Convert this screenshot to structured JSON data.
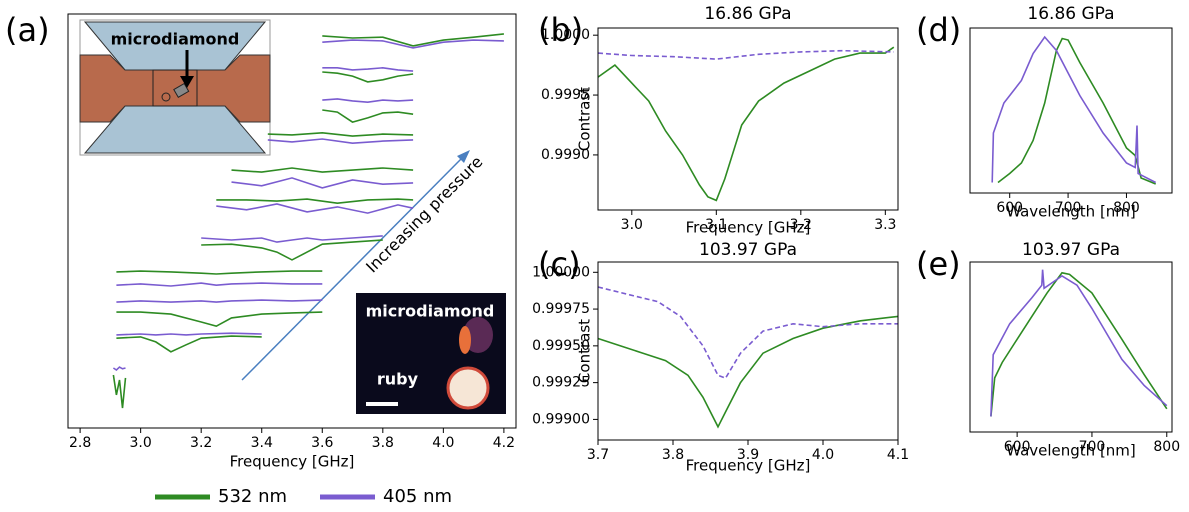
{
  "chart_data": [
    {
      "type": "line",
      "label": "(a)",
      "xlabel": "Frequency [GHz]",
      "xlim": [
        2.76,
        4.24
      ],
      "xticks": [
        2.8,
        {
          "value": 3,
          "label": "3.0"
        },
        3.2,
        3.4,
        3.6,
        3.8,
        {
          "value": 4,
          "label": "4.0"
        },
        4.2
      ],
      "ylim": [
        0,
        100
      ],
      "annotation": "Increasing pressure",
      "inset_labels": [
        "microdiamond",
        "microdiamond",
        "ruby"
      ],
      "series": [
        {
          "name": "532 nm",
          "color": "#2e8b23",
          "traces": [
            {
              "x": [
                2.91,
                2.92,
                2.93,
                2.94,
                2.95
              ],
              "values": [
                12.8,
                8.0,
                11.6,
                4.8,
                12.1
              ]
            },
            {
              "x": [
                2.92,
                3.0,
                3.05,
                3.1,
                3.15,
                3.2,
                3.3,
                3.4
              ],
              "values": [
                21.7,
                22.0,
                20.8,
                18.4,
                20.1,
                21.7,
                22.2,
                22.0
              ]
            },
            {
              "x": [
                2.92,
                3.0,
                3.1,
                3.2,
                3.25,
                3.3,
                3.4,
                3.5,
                3.6
              ],
              "values": [
                28.0,
                28.0,
                27.5,
                25.6,
                24.6,
                26.6,
                27.5,
                27.8,
                28.0
              ]
            },
            {
              "x": [
                2.92,
                3.0,
                3.1,
                3.2,
                3.25,
                3.3,
                3.4,
                3.5,
                3.6
              ],
              "values": [
                37.7,
                37.9,
                37.7,
                37.4,
                37.2,
                37.4,
                37.7,
                37.9,
                37.9
              ]
            },
            {
              "x": [
                3.2,
                3.3,
                3.4,
                3.45,
                3.5,
                3.55,
                3.6,
                3.7,
                3.8
              ],
              "values": [
                44.2,
                44.4,
                43.5,
                42.5,
                40.6,
                42.5,
                44.4,
                44.9,
                45.4
              ]
            },
            {
              "x": [
                3.25,
                3.35,
                3.45,
                3.55,
                3.65,
                3.75,
                3.85,
                3.9
              ],
              "values": [
                55.1,
                55.1,
                54.8,
                55.3,
                54.3,
                55.1,
                55.3,
                55.1
              ]
            },
            {
              "x": [
                3.3,
                3.4,
                3.5,
                3.6,
                3.7,
                3.8,
                3.9
              ],
              "values": [
                62.3,
                61.8,
                62.8,
                61.8,
                62.3,
                62.8,
                62.3
              ]
            },
            {
              "x": [
                3.42,
                3.5,
                3.6,
                3.7,
                3.8,
                3.9
              ],
              "values": [
                71.0,
                70.8,
                71.3,
                70.5,
                71.0,
                70.8
              ]
            },
            {
              "x": [
                3.6,
                3.65,
                3.7,
                3.75,
                3.8,
                3.85,
                3.9
              ],
              "values": [
                76.8,
                76.3,
                73.9,
                74.9,
                76.1,
                76.3,
                75.8
              ]
            },
            {
              "x": [
                3.6,
                3.65,
                3.7,
                3.75,
                3.8,
                3.85,
                3.9
              ],
              "values": [
                86.0,
                85.7,
                85.0,
                83.6,
                84.1,
                85.0,
                85.5
              ]
            },
            {
              "x": [
                3.6,
                3.7,
                3.8,
                3.9,
                4.0,
                4.1,
                4.2
              ],
              "values": [
                94.7,
                94.2,
                94.4,
                92.3,
                93.7,
                94.4,
                95.2
              ]
            }
          ]
        },
        {
          "name": "405 nm",
          "color": "#7a5cd0",
          "traces": [
            {
              "x": [
                2.91,
                2.92,
                2.93,
                2.94,
                2.95
              ],
              "values": [
                14.5,
                14.0,
                14.7,
                14.3,
                14.5
              ]
            },
            {
              "x": [
                2.92,
                3.0,
                3.05,
                3.1,
                3.15,
                3.2,
                3.3,
                3.4
              ],
              "values": [
                22.5,
                22.7,
                22.5,
                22.7,
                22.5,
                22.7,
                22.9,
                22.7
              ]
            },
            {
              "x": [
                2.92,
                3.0,
                3.1,
                3.2,
                3.25,
                3.3,
                3.4,
                3.5,
                3.6
              ],
              "values": [
                30.4,
                30.7,
                30.4,
                30.7,
                30.4,
                30.7,
                30.9,
                30.7,
                30.9
              ]
            },
            {
              "x": [
                2.92,
                3.0,
                3.1,
                3.2,
                3.25,
                3.3,
                3.4,
                3.5,
                3.6
              ],
              "values": [
                34.5,
                34.8,
                34.3,
                35.0,
                34.5,
                34.8,
                35.0,
                34.8,
                34.8
              ]
            },
            {
              "x": [
                3.2,
                3.3,
                3.4,
                3.45,
                3.5,
                3.55,
                3.6,
                3.7,
                3.8
              ],
              "values": [
                45.9,
                45.4,
                45.9,
                44.9,
                45.4,
                45.9,
                45.4,
                45.9,
                46.4
              ]
            },
            {
              "x": [
                3.25,
                3.35,
                3.45,
                3.55,
                3.65,
                3.75,
                3.85,
                3.9
              ],
              "values": [
                53.6,
                52.7,
                54.1,
                52.2,
                53.4,
                51.9,
                53.9,
                53.1
              ]
            },
            {
              "x": [
                3.3,
                3.4,
                3.5,
                3.6,
                3.7,
                3.8,
                3.9
              ],
              "values": [
                59.4,
                58.5,
                60.4,
                58.0,
                59.9,
                58.9,
                59.2
              ]
            },
            {
              "x": [
                3.42,
                3.5,
                3.6,
                3.7,
                3.8,
                3.9
              ],
              "values": [
                69.6,
                69.1,
                69.8,
                68.8,
                69.3,
                69.6
              ]
            },
            {
              "x": [
                3.6,
                3.65,
                3.7,
                3.75,
                3.8,
                3.85,
                3.9
              ],
              "values": [
                79.2,
                79.5,
                79.0,
                78.7,
                79.2,
                79.0,
                79.2
              ]
            },
            {
              "x": [
                3.6,
                3.65,
                3.7,
                3.75,
                3.8,
                3.85,
                3.9
              ],
              "values": [
                87.0,
                87.0,
                86.5,
                86.7,
                87.0,
                86.5,
                86.2
              ]
            },
            {
              "x": [
                3.6,
                3.7,
                3.8,
                3.9,
                4.0,
                4.1,
                4.2
              ],
              "values": [
                93.2,
                93.7,
                93.5,
                91.8,
                93.2,
                93.7,
                93.5
              ]
            }
          ]
        }
      ]
    },
    {
      "type": "line",
      "label": "(b)",
      "title": "16.86 GPa",
      "xlabel": "Frequency [GHz]",
      "ylabel": "Contrast",
      "xlim": [
        2.96,
        3.315
      ],
      "xticks": [
        {
          "value": 3,
          "label": "3.0"
        },
        3.1,
        3.2,
        3.3
      ],
      "ylim": [
        0.99854,
        1.00006
      ],
      "yticks": [
        {
          "value": 1,
          "label": "1.0000"
        },
        {
          "value": 0.9995,
          "label": "0.9995"
        },
        {
          "value": 0.999,
          "label": "0.9990"
        }
      ],
      "series": [
        {
          "color": "#2e8b23",
          "x": [
            2.96,
            2.98,
            3.0,
            3.02,
            3.04,
            3.06,
            3.08,
            3.09,
            3.1,
            3.11,
            3.13,
            3.15,
            3.18,
            3.21,
            3.24,
            3.27,
            3.3,
            3.31
          ],
          "values": [
            0.99965,
            0.99975,
            0.9996,
            0.99945,
            0.9992,
            0.999,
            0.99875,
            0.99865,
            0.99862,
            0.9988,
            0.99925,
            0.99945,
            0.9996,
            0.9997,
            0.9998,
            0.99985,
            0.99985,
            0.9999
          ]
        },
        {
          "color": "#7a5cd0",
          "dashed": true,
          "x": [
            2.96,
            3.0,
            3.05,
            3.1,
            3.15,
            3.2,
            3.25,
            3.31
          ],
          "values": [
            0.99985,
            0.99983,
            0.99982,
            0.9998,
            0.99984,
            0.99986,
            0.99987,
            0.99986
          ]
        }
      ]
    },
    {
      "type": "line",
      "label": "(c)",
      "title": "103.97 GPa",
      "xlabel": "Frequency [GHz]",
      "ylabel": "Contrast",
      "xlim": [
        3.7,
        4.1
      ],
      "xticks": [
        3.7,
        3.8,
        3.9,
        {
          "value": 4,
          "label": "4.0"
        },
        4.1
      ],
      "ylim": [
        0.99886,
        1.00007
      ],
      "yticks": [
        {
          "value": 1,
          "label": "1.00000"
        },
        {
          "value": 0.99975,
          "label": "0.99975"
        },
        {
          "value": 0.9995,
          "label": "0.99950"
        },
        {
          "value": 0.99925,
          "label": "0.99925"
        },
        {
          "value": 0.999,
          "label": "0.99900"
        }
      ],
      "series": [
        {
          "color": "#2e8b23",
          "x": [
            3.7,
            3.73,
            3.76,
            3.79,
            3.82,
            3.84,
            3.86,
            3.87,
            3.89,
            3.92,
            3.96,
            4.0,
            4.05,
            4.1
          ],
          "values": [
            0.99955,
            0.9995,
            0.99945,
            0.9994,
            0.9993,
            0.99915,
            0.99895,
            0.99905,
            0.99925,
            0.99945,
            0.99955,
            0.99962,
            0.99967,
            0.9997
          ]
        },
        {
          "color": "#7a5cd0",
          "dashed": true,
          "x": [
            3.7,
            3.74,
            3.78,
            3.81,
            3.84,
            3.86,
            3.87,
            3.89,
            3.92,
            3.96,
            4.0,
            4.05,
            4.1
          ],
          "values": [
            0.9999,
            0.99985,
            0.9998,
            0.9997,
            0.9995,
            0.9993,
            0.99928,
            0.99945,
            0.9996,
            0.99965,
            0.99963,
            0.99965,
            0.99965
          ]
        }
      ]
    },
    {
      "type": "line",
      "label": "(d)",
      "title": "16.86 GPa",
      "xlabel": "Wavelength [nm]",
      "xlim": [
        532,
        878
      ],
      "xticks": [
        600,
        700,
        800
      ],
      "ylim": [
        -0.05,
        1.05
      ],
      "series": [
        {
          "color": "#2e8b23",
          "x": [
            580,
            600,
            620,
            640,
            660,
            680,
            690,
            700,
            720,
            760,
            800,
            815,
            825,
            850
          ],
          "values": [
            0.02,
            0.08,
            0.15,
            0.3,
            0.55,
            0.9,
            0.98,
            0.97,
            0.82,
            0.55,
            0.25,
            0.2,
            0.05,
            0.01
          ]
        },
        {
          "color": "#7a5cd0",
          "x": [
            570,
            572,
            590,
            620,
            640,
            660,
            680,
            720,
            760,
            800,
            815,
            818,
            820,
            850
          ],
          "values": [
            0.02,
            0.35,
            0.55,
            0.7,
            0.88,
            0.99,
            0.9,
            0.6,
            0.35,
            0.15,
            0.12,
            0.4,
            0.08,
            0.02
          ]
        }
      ]
    },
    {
      "type": "line",
      "label": "(e)",
      "title": "103.97 GPa",
      "xlabel": "Wavelength [nm]",
      "xlim": [
        537,
        807
      ],
      "xticks": [
        600,
        700,
        800
      ],
      "ylim": [
        -0.05,
        1.05
      ],
      "series": [
        {
          "color": "#2e8b23",
          "x": [
            565,
            570,
            580,
            600,
            620,
            640,
            660,
            670,
            700,
            740,
            770,
            800
          ],
          "values": [
            0.05,
            0.3,
            0.4,
            0.55,
            0.7,
            0.85,
            0.98,
            0.97,
            0.85,
            0.55,
            0.32,
            0.1
          ]
        },
        {
          "color": "#7a5cd0",
          "x": [
            565,
            568,
            590,
            620,
            633,
            634,
            636,
            660,
            680,
            700,
            740,
            770,
            800
          ],
          "values": [
            0.05,
            0.45,
            0.65,
            0.82,
            0.9,
            1.0,
            0.88,
            0.96,
            0.9,
            0.75,
            0.42,
            0.25,
            0.12
          ]
        }
      ]
    }
  ]
}
